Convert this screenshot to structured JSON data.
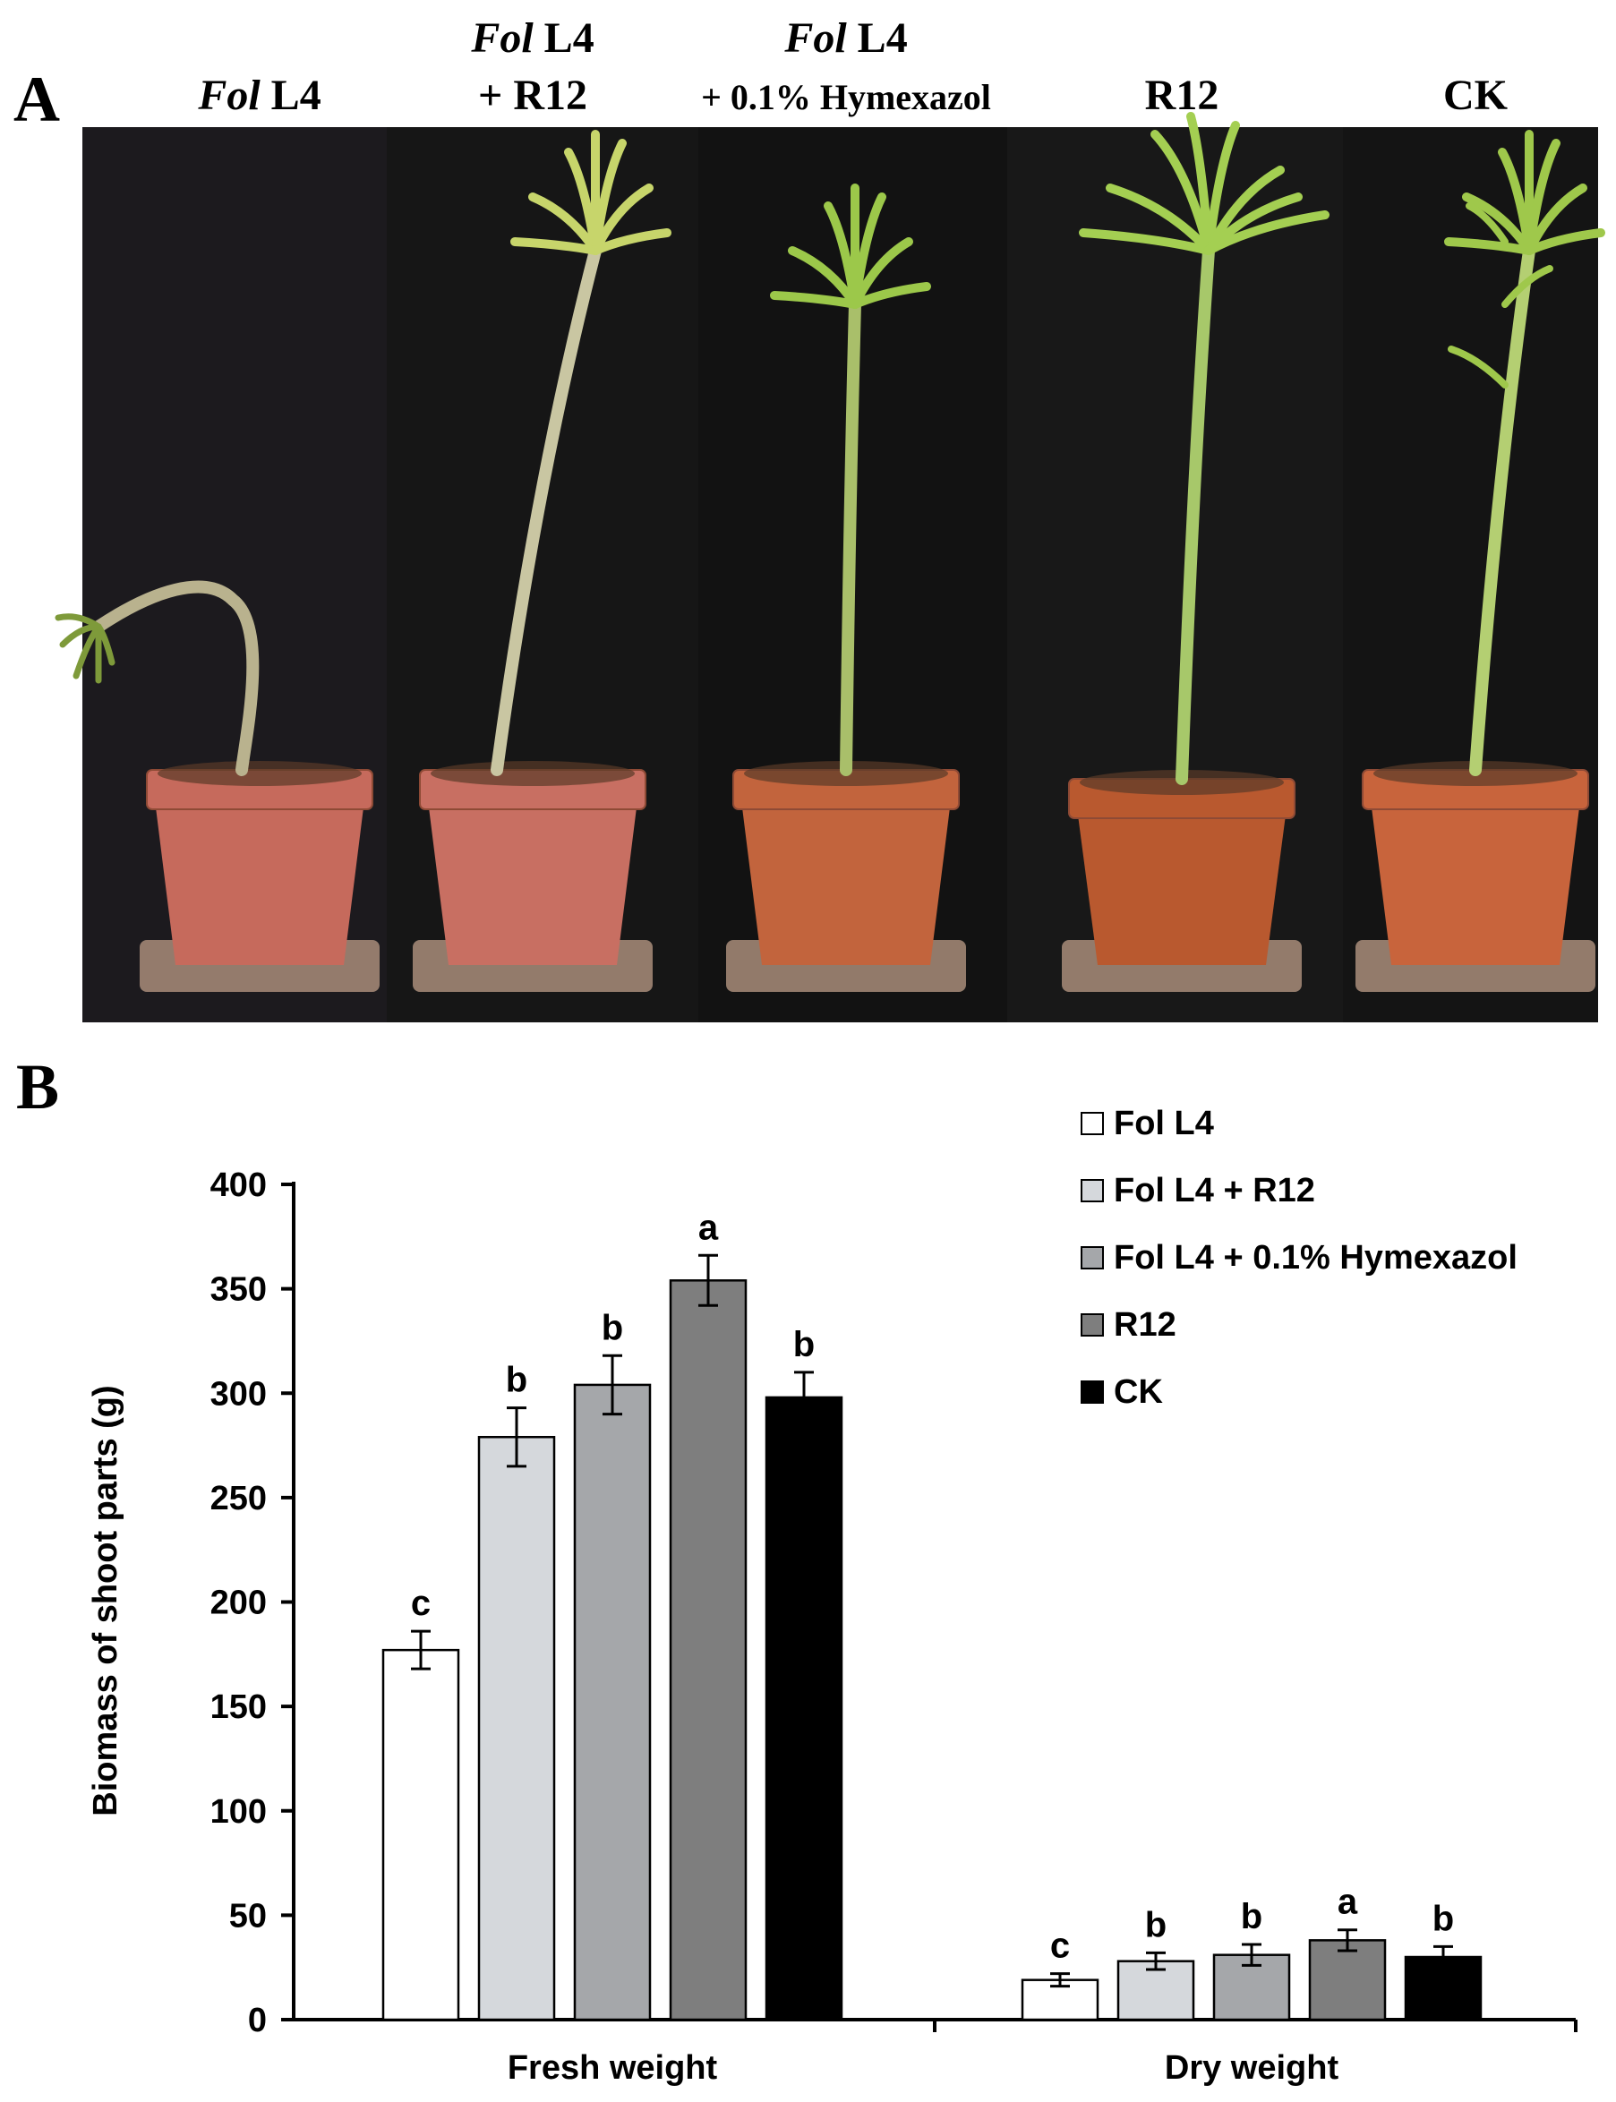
{
  "panel_a": {
    "label": "A",
    "columns": [
      {
        "name_italic": "Fol",
        "name_rest": " L4",
        "line2": ""
      },
      {
        "name_italic": "Fol",
        "name_rest": " L4",
        "line2": "+ R12"
      },
      {
        "name_italic": "Fol",
        "name_rest": " L4",
        "line2": "+ 0.1% Hymexazol"
      },
      {
        "name_italic": "",
        "name_rest": "R12",
        "line2": ""
      },
      {
        "name_italic": "",
        "name_rest": "CK",
        "line2": ""
      }
    ],
    "plants": [
      {
        "stem_color": "#b9b28e",
        "leaf_color": "#7e9a3a",
        "pot_color": "#c66a5c",
        "state": "wilted"
      },
      {
        "stem_color": "#c9c6a2",
        "leaf_color": "#c7d56b",
        "pot_color": "#c86f62",
        "state": "tall"
      },
      {
        "stem_color": "#a9bf6a",
        "leaf_color": "#9cc84a",
        "pot_color": "#c2643d",
        "state": "healthy"
      },
      {
        "stem_color": "#a7c86a",
        "leaf_color": "#a4cf52",
        "pot_color": "#b9592f",
        "state": "bushy"
      },
      {
        "stem_color": "#b4cf72",
        "leaf_color": "#9fc84b",
        "pot_color": "#c8643c",
        "state": "tall"
      }
    ]
  },
  "panel_b": {
    "label": "B"
  },
  "chart_data": {
    "type": "bar",
    "categories": [
      "Fresh weight",
      "Dry weight"
    ],
    "ylabel": "Biomass of shoot parts (g)",
    "ylim": [
      0,
      400
    ],
    "yticks": [
      "0",
      "50",
      "100",
      "150",
      "200",
      "250",
      "300",
      "350",
      "400"
    ],
    "legend_position": "top-right",
    "series": [
      {
        "name": "Fol L4",
        "color": "#ffffff",
        "values": [
          177,
          19
        ],
        "errors": [
          9,
          3
        ],
        "letters": [
          "c",
          "c"
        ]
      },
      {
        "name": "Fol L4 + R12",
        "color": "#d5d8dc",
        "values": [
          279,
          28
        ],
        "errors": [
          14,
          4
        ],
        "letters": [
          "b",
          "b"
        ]
      },
      {
        "name": "Fol L4 + 0.1% Hymexazol",
        "color": "#a5a7aa",
        "values": [
          304,
          31
        ],
        "errors": [
          14,
          5
        ],
        "letters": [
          "b",
          "b"
        ]
      },
      {
        "name": "R12",
        "color": "#7e7e7e",
        "values": [
          354,
          38
        ],
        "errors": [
          12,
          5
        ],
        "letters": [
          "a",
          "a"
        ]
      },
      {
        "name": "CK",
        "color": "#000000",
        "values": [
          298,
          30
        ],
        "errors": [
          12,
          5
        ],
        "letters": [
          "b",
          "b"
        ]
      }
    ]
  }
}
